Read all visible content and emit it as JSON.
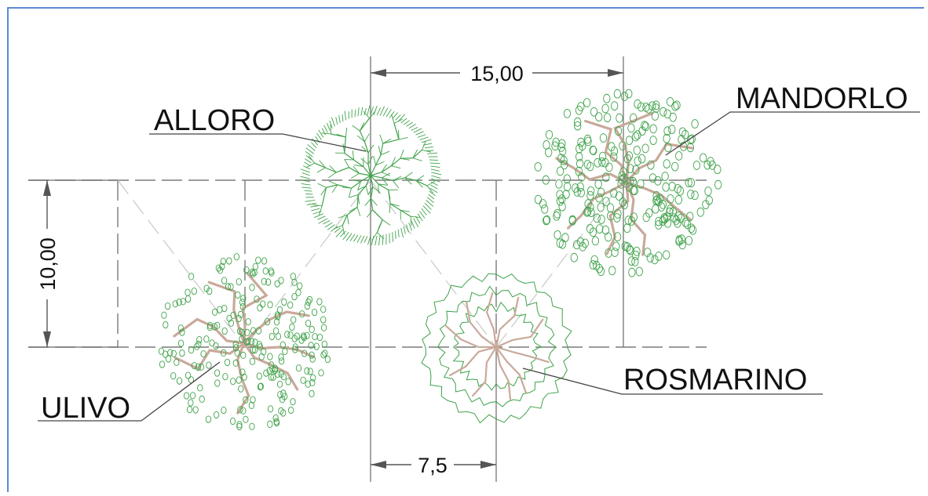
{
  "labels": {
    "alloro": "ALLORO",
    "mandorlo": "MANDORLO",
    "ulivo": "ULIVO",
    "rosmarino": "ROSMARINO"
  },
  "dimensions": {
    "top": "15,00",
    "left": "10,00",
    "bottom": "7,5"
  },
  "colors": {
    "frame": "#5b8ad6",
    "foliage": "#3fa24a",
    "branch": "#c9a99a",
    "line": "#555555",
    "guide": "#9a9a9a"
  }
}
